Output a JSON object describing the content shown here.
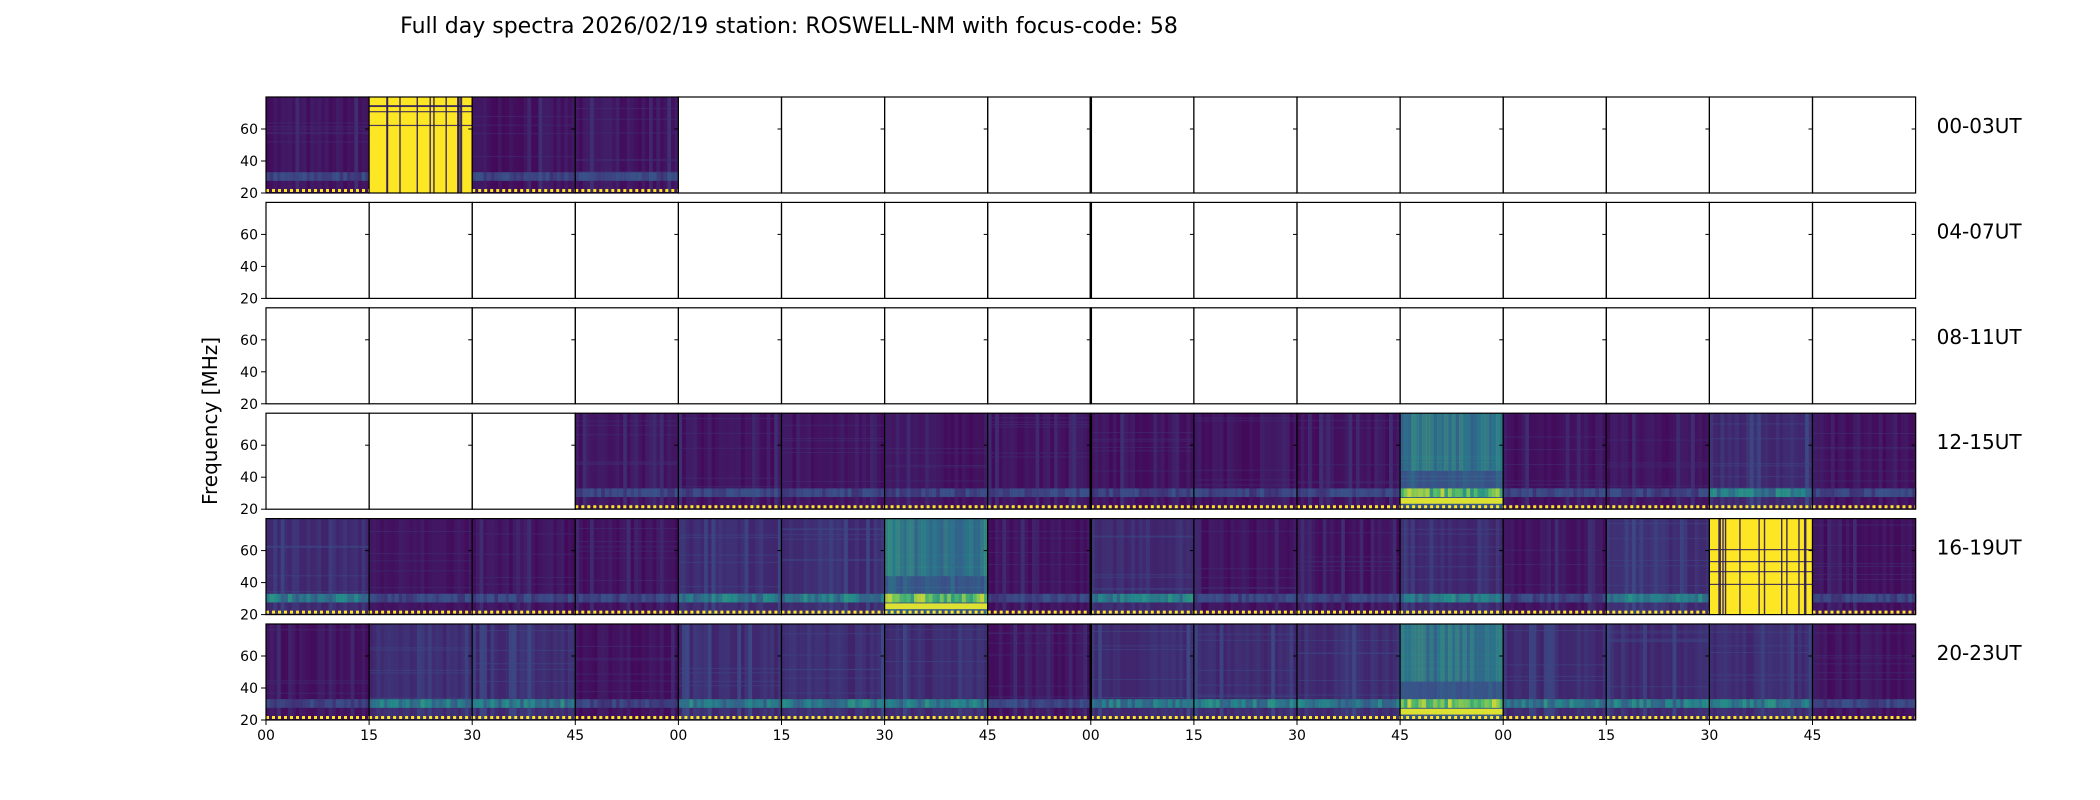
{
  "chart_data": {
    "type": "heatmap",
    "title": "Full day spectra 2026/02/19 station: ROSWELL-NM with focus-code: 58",
    "ylabel": "Frequency [MHz]",
    "ylim": [
      20,
      80
    ],
    "yticks": [
      20,
      40,
      60
    ],
    "xticks": [
      "00",
      "15",
      "30",
      "45",
      "00",
      "15",
      "30",
      "45",
      "00",
      "15",
      "30",
      "45",
      "00",
      "15",
      "30",
      "45"
    ],
    "colormap": [
      "#440154",
      "#3b528b",
      "#21918c",
      "#5ec962",
      "#fde725"
    ],
    "rows": [
      {
        "label": "00-03UT",
        "panels": [
          "low",
          "saturated",
          "low",
          "low",
          "empty",
          "empty",
          "empty",
          "empty",
          "empty",
          "empty",
          "empty",
          "empty",
          "empty",
          "empty",
          "empty",
          "empty"
        ]
      },
      {
        "label": "04-07UT",
        "panels": [
          "empty",
          "empty",
          "empty",
          "empty",
          "empty",
          "empty",
          "empty",
          "empty",
          "empty",
          "empty",
          "empty",
          "empty",
          "empty",
          "empty",
          "empty",
          "empty"
        ]
      },
      {
        "label": "08-11UT",
        "panels": [
          "empty",
          "empty",
          "empty",
          "empty",
          "empty",
          "empty",
          "empty",
          "empty",
          "empty",
          "empty",
          "empty",
          "empty",
          "empty",
          "empty",
          "empty",
          "empty"
        ]
      },
      {
        "label": "12-15UT",
        "panels": [
          "empty",
          "empty",
          "empty",
          "low",
          "low",
          "low",
          "low",
          "low",
          "low",
          "low",
          "low",
          "bright",
          "low",
          "low",
          "medium",
          "low"
        ]
      },
      {
        "label": "16-19UT",
        "panels": [
          "medium",
          "low",
          "low",
          "low",
          "medium",
          "medium",
          "bright",
          "low",
          "medium",
          "low",
          "low",
          "medium",
          "low",
          "medium",
          "saturated",
          "low"
        ]
      },
      {
        "label": "20-23UT",
        "panels": [
          "low",
          "medium",
          "medium",
          "low",
          "medium",
          "medium",
          "medium",
          "low",
          "medium",
          "medium",
          "medium",
          "bright",
          "medium",
          "medium",
          "medium",
          "low"
        ]
      }
    ]
  }
}
